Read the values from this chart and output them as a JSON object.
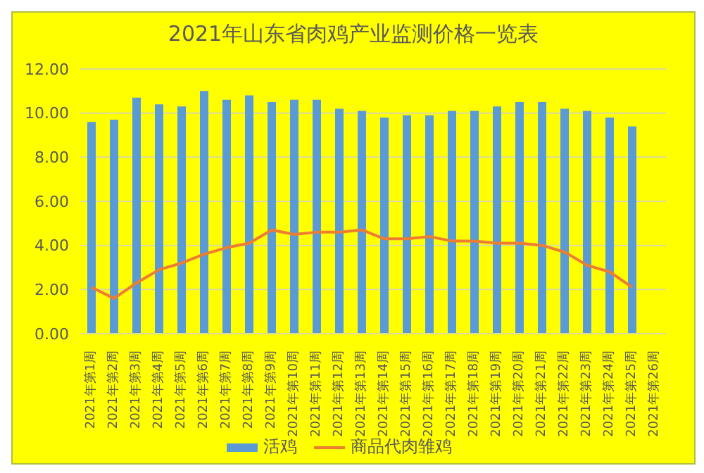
{
  "chart_data": {
    "type": "bar",
    "title": "2021年山东省肉鸡产业监测价格一览表",
    "categories": [
      "2021年第1周",
      "2021年第2周",
      "2021年第3周",
      "2021年第4周",
      "2021年第5周",
      "2021年第6周",
      "2021年第7周",
      "2021年第8周",
      "2021年第9周",
      "2021年第10周",
      "2021年第11周",
      "2021年第12周",
      "2021年第13周",
      "2021年第14周",
      "2021年第15周",
      "2021年第16周",
      "2021年第17周",
      "2021年第18周",
      "2021年第19周",
      "2021年第20周",
      "2021年第21周",
      "2021年第22周",
      "2021年第23周",
      "2021年第24周",
      "2021年第25周",
      "2021年第26周"
    ],
    "series": [
      {
        "name": "活鸡",
        "color": "#5b9bd5",
        "values": [
          9.6,
          9.7,
          10.7,
          10.4,
          10.3,
          11.0,
          10.6,
          10.8,
          10.5,
          10.6,
          10.6,
          10.2,
          10.1,
          9.8,
          9.9,
          9.9,
          10.1,
          10.1,
          10.3,
          10.5,
          10.5,
          10.2,
          10.1,
          9.8,
          9.4,
          null
        ]
      },
      {
        "name": "商品代肉雏鸡",
        "type": "line",
        "color": "#ed7d31",
        "values": [
          2.1,
          1.6,
          2.3,
          2.9,
          3.2,
          3.6,
          3.9,
          4.1,
          4.7,
          4.5,
          4.6,
          4.6,
          4.7,
          4.3,
          4.3,
          4.4,
          4.2,
          4.2,
          4.1,
          4.1,
          4.0,
          3.7,
          3.1,
          2.8,
          2.1,
          null
        ]
      }
    ],
    "ylim": [
      0,
      12
    ],
    "yticks": [
      {
        "value": 0,
        "label": "0.00"
      },
      {
        "value": 2,
        "label": "2.00"
      },
      {
        "value": 4,
        "label": "4.00"
      },
      {
        "value": 6,
        "label": "6.00"
      },
      {
        "value": 8,
        "label": "8.00"
      },
      {
        "value": 10,
        "label": "10.00"
      },
      {
        "value": 12,
        "label": "12.00"
      }
    ],
    "grid": "y",
    "legend": "bottom",
    "marker": "none"
  }
}
